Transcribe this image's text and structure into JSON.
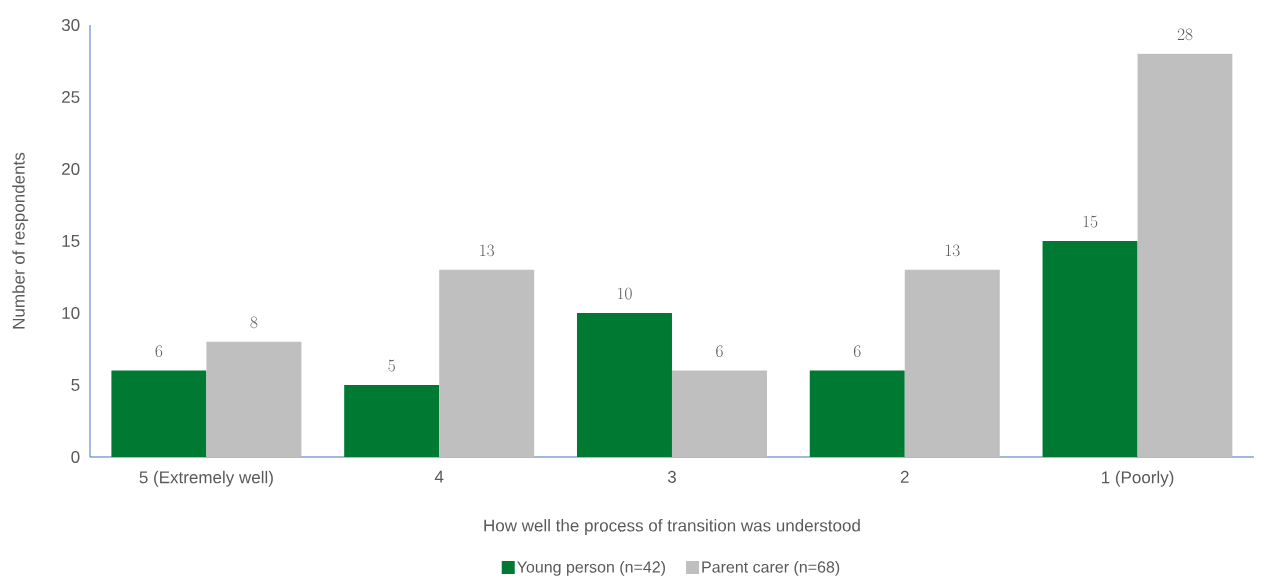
{
  "chart_data": {
    "type": "bar",
    "xlabel": "How well the process of transition was understood",
    "ylabel": "Number of respondents",
    "categories": [
      "5 (Extremely well)",
      "4",
      "3",
      "2",
      "1 (Poorly)"
    ],
    "series": [
      {
        "name": "Young person (n=42)",
        "color": "#007a33",
        "values": [
          6,
          5,
          10,
          6,
          15
        ]
      },
      {
        "name": "Parent carer (n=68)",
        "color": "#bfbfbf",
        "values": [
          8,
          13,
          6,
          13,
          28
        ]
      }
    ],
    "ylim": [
      0,
      30
    ],
    "yticks": [
      0,
      5,
      10,
      15,
      20,
      25,
      30
    ],
    "data_labels": true,
    "grid": false,
    "legend": "bottom"
  }
}
